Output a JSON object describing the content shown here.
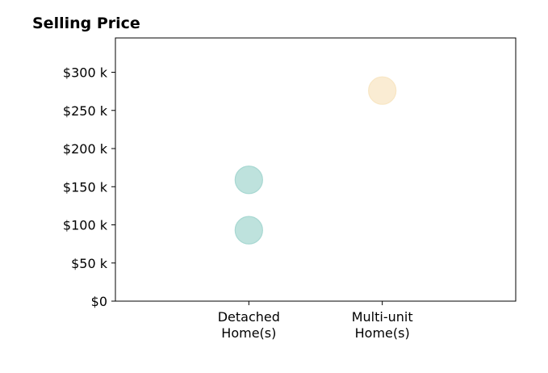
{
  "chart_data": {
    "type": "scatter",
    "title": "Selling Price",
    "xlabel": "",
    "ylabel": "",
    "categories": [
      [
        "Detached",
        "Home(s)"
      ],
      [
        "Multi-unit",
        "Home(s)"
      ]
    ],
    "x_range": [
      -1,
      2
    ],
    "ylim": [
      0,
      345000
    ],
    "y_ticks": [
      {
        "value": 0,
        "label": "$0"
      },
      {
        "value": 50000,
        "label": "$50 k"
      },
      {
        "value": 100000,
        "label": "$100 k"
      },
      {
        "value": 150000,
        "label": "$150 k"
      },
      {
        "value": 200000,
        "label": "$200 k"
      },
      {
        "value": 250000,
        "label": "$250 k"
      },
      {
        "value": 300000,
        "label": "$300 k"
      }
    ],
    "grid": false,
    "legend": "none",
    "points": [
      {
        "category": 0,
        "value": 93000,
        "color": "#a8d8d2"
      },
      {
        "category": 0,
        "value": 159000,
        "color": "#a8d8d2"
      },
      {
        "category": 1,
        "value": 276000,
        "color": "#f8e6c4"
      }
    ],
    "point_colors": {
      "detached": "#a8d8d2",
      "multi_unit": "#f8e6c4"
    }
  }
}
